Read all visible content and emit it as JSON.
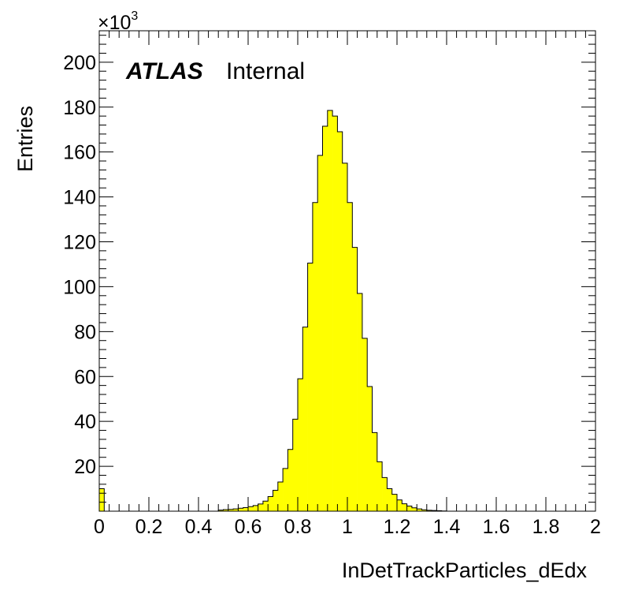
{
  "chart_data": {
    "type": "histogram",
    "title": "",
    "xlabel": "InDetTrackParticles_dEdx",
    "ylabel": "Entries",
    "y_multiplier_label": "×10",
    "y_multiplier_exponent": "3",
    "experiment_label": "ATLAS",
    "status_label": "Internal",
    "xlim": [
      0,
      2
    ],
    "ylim": [
      0,
      214
    ],
    "x_ticks": [
      0,
      0.2,
      0.4,
      0.6,
      0.8,
      1,
      1.2,
      1.4,
      1.6,
      1.8,
      2
    ],
    "x_tick_labels": [
      "0",
      "0.2",
      "0.4",
      "0.6",
      "0.8",
      "1",
      "1.2",
      "1.4",
      "1.6",
      "1.8",
      "2"
    ],
    "y_ticks": [
      20,
      40,
      60,
      80,
      100,
      120,
      140,
      160,
      180,
      200
    ],
    "y_tick_labels": [
      "20",
      "40",
      "60",
      "80",
      "100",
      "120",
      "140",
      "160",
      "180",
      "200"
    ],
    "bin_width": 0.02,
    "values": [
      10,
      0,
      0,
      0,
      0,
      0,
      0,
      0,
      0,
      0,
      0,
      0,
      0,
      0,
      0,
      0,
      0,
      0,
      0,
      0,
      0,
      0,
      0,
      0,
      0.5,
      0.7,
      0.8,
      1,
      1.3,
      1.6,
      2,
      2.5,
      3.2,
      4.5,
      6.5,
      9.3,
      13,
      19,
      27.5,
      41,
      59,
      82,
      110.5,
      137.5,
      158.5,
      171.5,
      178.5,
      176,
      169,
      155,
      137.5,
      117.5,
      97,
      77,
      55.5,
      35,
      22,
      15,
      10,
      7.5,
      5,
      3.3,
      2.3,
      1.5,
      1,
      0.6,
      0.4,
      0.3,
      0.2,
      0.1,
      0,
      0,
      0,
      0,
      0,
      0,
      0,
      0,
      0,
      0,
      0,
      0,
      0,
      0,
      0,
      0,
      0,
      0,
      0,
      0,
      0,
      0,
      0,
      0,
      0,
      0,
      0,
      0,
      0,
      0
    ],
    "fill_color": "#ffff00",
    "line_color": "#000000"
  }
}
